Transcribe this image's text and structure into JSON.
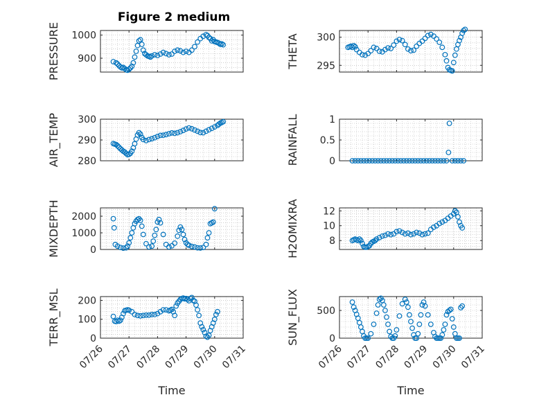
{
  "figure": {
    "title": "Figure 2 medium"
  },
  "style": {
    "marker_color": "#0072BD",
    "axis_color": "#262626",
    "grid_color": "#b0b0b0"
  },
  "chart_data": [
    {
      "type": "scatter",
      "name": "pressure",
      "ylabel": "PRESSURE",
      "xlabel": "",
      "xlim": [
        0,
        5
      ],
      "ylim": [
        840,
        1020
      ],
      "yticks": [
        900,
        1000
      ],
      "ytick_labels": [
        "900",
        "1000"
      ],
      "xticks": [
        0,
        1,
        2,
        3,
        4,
        5
      ],
      "xtick_labels": [],
      "grid": true,
      "x": [
        0.45,
        0.55,
        0.6,
        0.65,
        0.7,
        0.75,
        0.8,
        0.85,
        0.9,
        0.95,
        1.0,
        1.05,
        1.1,
        1.15,
        1.2,
        1.25,
        1.3,
        1.35,
        1.4,
        1.45,
        1.5,
        1.55,
        1.6,
        1.65,
        1.7,
        1.75,
        1.8,
        1.9,
        2.0,
        2.1,
        2.2,
        2.3,
        2.4,
        2.5,
        2.6,
        2.7,
        2.8,
        2.9,
        3.0,
        3.1,
        3.2,
        3.3,
        3.4,
        3.5,
        3.6,
        3.7,
        3.75,
        3.8,
        3.85,
        3.9,
        3.95,
        4.0,
        4.05,
        4.1,
        4.15,
        4.2,
        4.25,
        4.3
      ],
      "y": [
        885,
        880,
        875,
        868,
        862,
        858,
        860,
        855,
        850,
        848,
        852,
        858,
        865,
        880,
        905,
        930,
        955,
        975,
        980,
        960,
        935,
        920,
        915,
        910,
        908,
        905,
        910,
        915,
        912,
        918,
        925,
        920,
        915,
        918,
        930,
        935,
        932,
        925,
        930,
        925,
        935,
        950,
        970,
        985,
        995,
        1002,
        998,
        990,
        985,
        975,
        980,
        972,
        970,
        968,
        965,
        960,
        962,
        958
      ]
    },
    {
      "type": "scatter",
      "name": "theta",
      "ylabel": "THETA",
      "xlabel": "",
      "xlim": [
        0,
        5
      ],
      "ylim": [
        293.8,
        301.2
      ],
      "yticks": [
        295,
        300
      ],
      "ytick_labels": [
        "295",
        "300"
      ],
      "xticks": [
        0,
        1,
        2,
        3,
        4,
        5
      ],
      "xtick_labels": [],
      "grid": true,
      "x": [
        0.3,
        0.35,
        0.4,
        0.45,
        0.5,
        0.55,
        0.6,
        0.7,
        0.8,
        0.9,
        1.0,
        1.1,
        1.2,
        1.3,
        1.4,
        1.5,
        1.6,
        1.7,
        1.8,
        1.9,
        2.0,
        2.1,
        2.2,
        2.3,
        2.4,
        2.5,
        2.6,
        2.7,
        2.8,
        2.9,
        3.0,
        3.1,
        3.2,
        3.3,
        3.4,
        3.5,
        3.6,
        3.7,
        3.75,
        3.8,
        3.85,
        3.9,
        3.95,
        4.0,
        4.05,
        4.1,
        4.15,
        4.2,
        4.25,
        4.3,
        4.35,
        4.4
      ],
      "y": [
        298.2,
        298.3,
        298.4,
        298.2,
        298.5,
        298.3,
        297.8,
        297.3,
        296.9,
        296.8,
        297.1,
        297.6,
        298.2,
        298.0,
        297.5,
        297.4,
        297.8,
        298.1,
        298.0,
        298.6,
        299.3,
        299.6,
        299.4,
        298.7,
        297.9,
        297.6,
        297.7,
        298.4,
        298.9,
        299.3,
        299.8,
        300.3,
        300.5,
        300.2,
        299.7,
        299.1,
        298.2,
        296.9,
        295.8,
        294.6,
        294.2,
        294.1,
        294.0,
        295.5,
        296.8,
        297.9,
        298.7,
        299.4,
        300.0,
        300.7,
        301.2,
        301.4
      ]
    },
    {
      "type": "scatter",
      "name": "air_temp",
      "ylabel": "AIR_TEMP",
      "xlabel": "",
      "xlim": [
        0,
        5
      ],
      "ylim": [
        280,
        300
      ],
      "yticks": [
        280,
        290,
        300
      ],
      "ytick_labels": [
        "280",
        "290",
        "300"
      ],
      "xticks": [
        0,
        1,
        2,
        3,
        4,
        5
      ],
      "xtick_labels": [],
      "grid": true,
      "x": [
        0.45,
        0.5,
        0.55,
        0.6,
        0.65,
        0.7,
        0.75,
        0.8,
        0.85,
        0.9,
        0.95,
        1.0,
        1.05,
        1.1,
        1.15,
        1.2,
        1.25,
        1.3,
        1.35,
        1.4,
        1.45,
        1.5,
        1.6,
        1.7,
        1.8,
        1.9,
        2.0,
        2.1,
        2.2,
        2.3,
        2.4,
        2.5,
        2.6,
        2.7,
        2.8,
        2.9,
        3.0,
        3.1,
        3.2,
        3.3,
        3.4,
        3.5,
        3.6,
        3.7,
        3.8,
        3.9,
        4.0,
        4.1,
        4.15,
        4.2,
        4.25,
        4.3
      ],
      "y": [
        288.3,
        288.0,
        287.8,
        287.2,
        286.5,
        285.8,
        285.2,
        284.6,
        284.2,
        283.5,
        282.9,
        283.1,
        283.6,
        284.6,
        286.2,
        288.2,
        290.4,
        292.4,
        293.5,
        292.8,
        291.2,
        290.2,
        289.7,
        290.2,
        290.6,
        291.1,
        291.7,
        292.2,
        292.3,
        292.6,
        293.0,
        293.4,
        293.2,
        293.5,
        294.0,
        294.6,
        295.3,
        295.8,
        295.4,
        294.8,
        294.2,
        293.6,
        293.5,
        294.2,
        294.9,
        295.6,
        296.3,
        297.0,
        297.6,
        298.1,
        298.4,
        298.8
      ]
    },
    {
      "type": "scatter",
      "name": "rainfall",
      "ylabel": "RAINFALL",
      "xlabel": "",
      "xlim": [
        0,
        5
      ],
      "ylim": [
        0,
        1
      ],
      "yticks": [
        0,
        0.5,
        1
      ],
      "ytick_labels": [
        "0",
        "0.5",
        "1"
      ],
      "xticks": [
        0,
        1,
        2,
        3,
        4,
        5
      ],
      "xtick_labels": [],
      "grid": true,
      "x": [
        0.45,
        0.55,
        0.65,
        0.75,
        0.85,
        0.95,
        1.05,
        1.15,
        1.25,
        1.35,
        1.45,
        1.55,
        1.65,
        1.75,
        1.85,
        1.95,
        2.05,
        2.15,
        2.25,
        2.35,
        2.45,
        2.55,
        2.65,
        2.75,
        2.85,
        2.95,
        3.05,
        3.15,
        3.25,
        3.35,
        3.45,
        3.55,
        3.65,
        3.75,
        3.82,
        3.85,
        3.95,
        4.05,
        4.15,
        4.25,
        4.35
      ],
      "y": [
        0,
        0,
        0,
        0,
        0,
        0,
        0,
        0,
        0,
        0,
        0,
        0,
        0,
        0,
        0,
        0,
        0,
        0,
        0,
        0,
        0,
        0,
        0,
        0,
        0,
        0,
        0,
        0,
        0,
        0,
        0,
        0,
        0,
        0,
        0.2,
        0.9,
        0,
        0,
        0,
        0,
        0
      ]
    },
    {
      "type": "scatter",
      "name": "mixdepth",
      "ylabel": "MIXDEPTH",
      "xlabel": "",
      "xlim": [
        0,
        5
      ],
      "ylim": [
        0,
        2500
      ],
      "yticks": [
        0,
        1000,
        2000
      ],
      "ytick_labels": [
        "0",
        "1000",
        "2000"
      ],
      "xticks": [
        0,
        1,
        2,
        3,
        4,
        5
      ],
      "xtick_labels": [],
      "grid": true,
      "x": [
        0.45,
        0.48,
        0.52,
        0.6,
        0.7,
        0.8,
        0.9,
        0.95,
        1.0,
        1.05,
        1.1,
        1.15,
        1.2,
        1.25,
        1.3,
        1.35,
        1.4,
        1.45,
        1.5,
        1.6,
        1.7,
        1.8,
        1.85,
        1.9,
        1.95,
        2.0,
        2.05,
        2.1,
        2.2,
        2.3,
        2.4,
        2.5,
        2.6,
        2.7,
        2.75,
        2.8,
        2.85,
        2.9,
        2.95,
        3.0,
        3.05,
        3.1,
        3.2,
        3.3,
        3.4,
        3.5,
        3.6,
        3.7,
        3.75,
        3.8,
        3.85,
        3.9,
        3.95,
        4.0
      ],
      "y": [
        1850,
        1300,
        300,
        200,
        120,
        80,
        100,
        200,
        400,
        700,
        1000,
        1300,
        1550,
        1700,
        1800,
        1850,
        1750,
        1400,
        900,
        350,
        150,
        200,
        500,
        850,
        1200,
        1650,
        1800,
        1600,
        900,
        300,
        150,
        220,
        380,
        800,
        1150,
        1350,
        1200,
        900,
        600,
        400,
        300,
        250,
        180,
        150,
        100,
        90,
        120,
        300,
        700,
        1000,
        1550,
        1600,
        1650,
        2450
      ]
    },
    {
      "type": "scatter",
      "name": "h2omixra",
      "ylabel": "H2OMIXRA",
      "xlabel": "",
      "xlim": [
        0,
        5
      ],
      "ylim": [
        6.8,
        12.4
      ],
      "yticks": [
        8,
        10,
        12
      ],
      "ytick_labels": [
        "8",
        "10",
        "12"
      ],
      "xticks": [
        0,
        1,
        2,
        3,
        4,
        5
      ],
      "xtick_labels": [],
      "grid": true,
      "x": [
        0.45,
        0.5,
        0.55,
        0.6,
        0.65,
        0.7,
        0.75,
        0.8,
        0.85,
        0.9,
        0.95,
        1.0,
        1.05,
        1.1,
        1.15,
        1.2,
        1.25,
        1.3,
        1.4,
        1.5,
        1.6,
        1.7,
        1.8,
        1.9,
        2.0,
        2.1,
        2.2,
        2.3,
        2.4,
        2.5,
        2.6,
        2.7,
        2.8,
        2.9,
        3.0,
        3.1,
        3.2,
        3.3,
        3.4,
        3.5,
        3.6,
        3.7,
        3.8,
        3.9,
        4.0,
        4.05,
        4.1,
        4.15,
        4.2,
        4.25,
        4.3
      ],
      "y": [
        8.0,
        8.1,
        8.2,
        8.1,
        8.0,
        8.2,
        8.0,
        7.6,
        7.2,
        7.1,
        7.1,
        7.2,
        7.3,
        7.6,
        7.8,
        7.9,
        8.0,
        8.2,
        8.4,
        8.6,
        8.7,
        8.9,
        8.8,
        8.9,
        9.2,
        9.3,
        9.1,
        8.9,
        9.0,
        8.8,
        8.9,
        9.1,
        9.0,
        8.8,
        8.9,
        9.0,
        9.5,
        9.8,
        10.0,
        10.3,
        10.5,
        10.7,
        11.0,
        11.3,
        11.6,
        12.0,
        11.8,
        11.2,
        10.5,
        10.0,
        9.7
      ]
    },
    {
      "type": "scatter",
      "name": "terr_msl",
      "ylabel": "TERR_MSL",
      "xlabel": "Time",
      "xlim": [
        0,
        5
      ],
      "ylim": [
        0,
        220
      ],
      "yticks": [
        0,
        100,
        200
      ],
      "ytick_labels": [
        "0",
        "100",
        "200"
      ],
      "xticks": [
        0,
        1,
        2,
        3,
        4,
        5
      ],
      "xtick_labels": [
        "07/26",
        "07/27",
        "07/28",
        "07/29",
        "07/30",
        "07/31"
      ],
      "grid": true,
      "x": [
        0.45,
        0.5,
        0.55,
        0.6,
        0.65,
        0.7,
        0.75,
        0.8,
        0.85,
        0.9,
        0.95,
        1.0,
        1.1,
        1.2,
        1.3,
        1.4,
        1.5,
        1.6,
        1.7,
        1.8,
        1.9,
        2.0,
        2.1,
        2.2,
        2.3,
        2.4,
        2.45,
        2.5,
        2.55,
        2.6,
        2.65,
        2.7,
        2.75,
        2.8,
        2.85,
        2.9,
        2.95,
        3.0,
        3.05,
        3.1,
        3.15,
        3.2,
        3.25,
        3.3,
        3.35,
        3.4,
        3.45,
        3.5,
        3.55,
        3.6,
        3.65,
        3.7,
        3.75,
        3.8,
        3.85,
        3.9,
        3.95,
        4.0,
        4.05,
        4.1
      ],
      "y": [
        115,
        90,
        88,
        95,
        90,
        95,
        110,
        130,
        145,
        148,
        150,
        148,
        140,
        125,
        120,
        118,
        120,
        122,
        122,
        125,
        125,
        130,
        140,
        150,
        150,
        145,
        148,
        152,
        140,
        120,
        170,
        185,
        195,
        205,
        210,
        212,
        208,
        210,
        205,
        198,
        210,
        215,
        200,
        195,
        175,
        150,
        120,
        80,
        60,
        45,
        30,
        10,
        5,
        15,
        40,
        60,
        80,
        100,
        125,
        140
      ]
    },
    {
      "type": "scatter",
      "name": "sun_flux",
      "ylabel": "SUN_FLUX",
      "xlabel": "Time",
      "xlim": [
        0,
        5
      ],
      "ylim": [
        0,
        750
      ],
      "yticks": [
        0,
        500
      ],
      "ytick_labels": [
        "0",
        "500"
      ],
      "xticks": [
        0,
        1,
        2,
        3,
        4,
        5
      ],
      "xtick_labels": [
        "07/26",
        "07/27",
        "07/28",
        "07/29",
        "07/30",
        "07/31"
      ],
      "grid": true,
      "x": [
        0.45,
        0.5,
        0.55,
        0.6,
        0.65,
        0.7,
        0.75,
        0.8,
        0.85,
        0.9,
        0.95,
        1.0,
        1.1,
        1.2,
        1.3,
        1.35,
        1.4,
        1.45,
        1.5,
        1.55,
        1.6,
        1.65,
        1.7,
        1.75,
        1.8,
        1.85,
        1.9,
        1.95,
        2.0,
        2.1,
        2.2,
        2.3,
        2.35,
        2.4,
        2.45,
        2.5,
        2.55,
        2.6,
        2.65,
        2.7,
        2.75,
        2.8,
        2.85,
        2.9,
        2.95,
        3.0,
        3.1,
        3.2,
        3.3,
        3.35,
        3.4,
        3.45,
        3.5,
        3.55,
        3.6,
        3.65,
        3.7,
        3.75,
        3.8,
        3.85,
        3.9,
        3.95,
        4.0,
        4.05,
        4.1,
        4.15,
        4.2,
        4.25,
        4.3
      ],
      "y": [
        650,
        560,
        500,
        430,
        360,
        280,
        200,
        120,
        40,
        0,
        0,
        0,
        80,
        250,
        450,
        600,
        700,
        720,
        680,
        600,
        500,
        380,
        250,
        120,
        30,
        0,
        0,
        40,
        150,
        400,
        620,
        700,
        650,
        560,
        420,
        300,
        180,
        60,
        0,
        0,
        80,
        250,
        420,
        600,
        650,
        580,
        420,
        250,
        100,
        30,
        0,
        0,
        0,
        0,
        60,
        150,
        250,
        420,
        480,
        500,
        520,
        350,
        200,
        80,
        0,
        0,
        0,
        550,
        580
      ]
    }
  ]
}
